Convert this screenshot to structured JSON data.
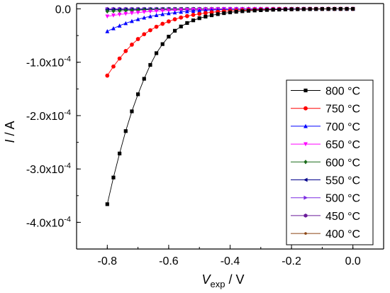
{
  "chart_data": {
    "type": "line",
    "title": "",
    "xlabel": {
      "main": "V",
      "sub": "exp",
      "unit": " / V"
    },
    "ylabel": {
      "main": "I",
      "unit": " / A"
    },
    "xlim": [
      -0.9,
      0.1
    ],
    "ylim": [
      -0.00045,
      1e-05
    ],
    "xticks": [
      -0.8,
      -0.6,
      -0.4,
      -0.2,
      0.0
    ],
    "xtick_labels": [
      "-0.8",
      "-0.6",
      "-0.4",
      "-0.2",
      "0.0"
    ],
    "yticks": [
      0.0,
      -0.0001,
      -0.0002,
      -0.0003,
      -0.0004
    ],
    "ytick_labels": [
      "0.0",
      "-1.0x10-4",
      "-2.0x10-4",
      "-3.0x10-4",
      "-4.0x10-4"
    ],
    "ytick_parts": [
      {
        "base": "0.0",
        "exp": ""
      },
      {
        "base": "-1.0x10",
        "exp": "-4"
      },
      {
        "base": "-2.0x10",
        "exp": "-4"
      },
      {
        "base": "-3.0x10",
        "exp": "-4"
      },
      {
        "base": "-4.0x10",
        "exp": "-4"
      }
    ],
    "grid": false,
    "legend_position": "right",
    "x": [
      -0.8,
      -0.78,
      -0.76,
      -0.74,
      -0.72,
      -0.7,
      -0.68,
      -0.66,
      -0.64,
      -0.62,
      -0.6,
      -0.58,
      -0.56,
      -0.54,
      -0.52,
      -0.5,
      -0.48,
      -0.46,
      -0.44,
      -0.42,
      -0.4,
      -0.38,
      -0.36,
      -0.34,
      -0.32,
      -0.3,
      -0.28,
      -0.26,
      -0.24,
      -0.22,
      -0.2,
      -0.18,
      -0.16,
      -0.14,
      -0.12,
      -0.1,
      -0.08,
      -0.06,
      -0.04,
      -0.02,
      0.0
    ],
    "series": [
      {
        "name": "800 °C",
        "color": "#000000",
        "marker": "square",
        "values": [
          -0.000366,
          -0.000316,
          -0.000271,
          -0.000229,
          -0.000192,
          -0.00016,
          -0.000131,
          -0.000105,
          -8.3e-05,
          -6.6e-05,
          -5.2e-05,
          -4.1e-05,
          -3.3e-05,
          -2.65e-05,
          -2.15e-05,
          -1.75e-05,
          -1.45e-05,
          -1.2e-05,
          -9.8e-06,
          -8e-06,
          -6.6e-06,
          -5.4e-06,
          -4.4e-06,
          -3.6e-06,
          -3e-06,
          -2.5e-06,
          -2e-06,
          -1.6e-06,
          -1.3e-06,
          -1e-06,
          -8e-07,
          -6e-07,
          -5e-07,
          -4e-07,
          -3e-07,
          -2e-07,
          -1.5e-07,
          -1e-07,
          -6e-08,
          -3e-08,
          0.0
        ]
      },
      {
        "name": "750 °C",
        "color": "#ff0000",
        "marker": "circle",
        "values": [
          -0.000125,
          -0.000108,
          -9.3e-05,
          -7.9e-05,
          -6.7e-05,
          -5.65e-05,
          -4.75e-05,
          -4e-05,
          -3.35e-05,
          -2.8e-05,
          -2.35e-05,
          -1.95e-05,
          -1.62e-05,
          -1.35e-05,
          -1.12e-05,
          -9.3e-06,
          -7.7e-06,
          -6.4e-06,
          -5.3e-06,
          -4.4e-06,
          -3.6e-06,
          -3e-06,
          -2.5e-06,
          -2e-06,
          -1.7e-06,
          -1.4e-06,
          -1.1e-06,
          -9e-07,
          -7e-07,
          -6e-07,
          -5e-07,
          -4e-07,
          -3e-07,
          -2e-07,
          -1.5e-07,
          -1e-07,
          -8e-08,
          -5e-08,
          -3e-08,
          -1e-08,
          0.0
        ]
      },
      {
        "name": "700 °C",
        "color": "#0000ff",
        "marker": "triangle-up",
        "values": [
          -4.2e-05,
          -3.65e-05,
          -3.15e-05,
          -2.7e-05,
          -2.3e-05,
          -1.95e-05,
          -1.65e-05,
          -1.4e-05,
          -1.18e-05,
          -9.9e-06,
          -8.3e-06,
          -6.9e-06,
          -5.7e-06,
          -4.7e-06,
          -3.9e-06,
          -3.2e-06,
          -2.6e-06,
          -2.1e-06,
          -1.7e-06,
          -1.4e-06,
          -1.1e-06,
          -9e-07,
          -7e-07,
          -6e-07,
          -5e-07,
          -4e-07,
          -3e-07,
          -2.5e-07,
          -2e-07,
          -1.5e-07,
          -1e-07,
          -8e-08,
          -6e-08,
          -4e-08,
          -3e-08,
          -2e-08,
          -1e-08,
          -1e-08,
          0.0,
          0.0,
          0.0
        ]
      },
      {
        "name": "650 °C",
        "color": "#ff00ff",
        "marker": "triangle-down",
        "values": [
          -1.4e-05,
          -1.22e-05,
          -1.06e-05,
          -9.2e-06,
          -7.9e-06,
          -6.8e-06,
          -5.8e-06,
          -4.9e-06,
          -4.2e-06,
          -3.5e-06,
          -3e-06,
          -2.5e-06,
          -2.1e-06,
          -1.7e-06,
          -1.4e-06,
          -1.2e-06,
          -1e-06,
          -8e-07,
          -6e-07,
          -5e-07,
          -4e-07,
          -3e-07,
          -2.5e-07,
          -2e-07,
          -1.5e-07,
          -1.2e-07,
          -1e-07,
          -8e-08,
          -6e-08,
          -5e-08,
          -4e-08,
          -3e-08,
          -2e-08,
          -2e-08,
          -1e-08,
          -1e-08,
          0.0,
          0.0,
          0.0,
          0.0,
          0.0
        ]
      },
      {
        "name": "600 °C",
        "color": "#1a6b1a",
        "marker": "diamond",
        "values": [
          -4.5e-06,
          -4e-06,
          -3.5e-06,
          -3e-06,
          -2.6e-06,
          -2.2e-06,
          -1.9e-06,
          -1.6e-06,
          -1.4e-06,
          -1.2e-06,
          -1e-06,
          -8e-07,
          -7e-07,
          -6e-07,
          -5e-07,
          -4e-07,
          -3e-07,
          -2.5e-07,
          -2e-07,
          -1.6e-07,
          -1.3e-07,
          -1e-07,
          -8e-08,
          -6e-08,
          -5e-08,
          -4e-08,
          -3e-08,
          -2e-08,
          -2e-08,
          -1e-08,
          -1e-08,
          0.0,
          0.0,
          0.0,
          0.0,
          0.0,
          0.0,
          0.0,
          0.0,
          0.0,
          0.0
        ]
      },
      {
        "name": "550 °C",
        "color": "#00008b",
        "marker": "triangle-left",
        "values": [
          -1.5e-06,
          -1.3e-06,
          -1.2e-06,
          -1e-06,
          -9e-07,
          -8e-07,
          -7e-07,
          -6e-07,
          -5e-07,
          -4e-07,
          -3.5e-07,
          -3e-07,
          -2.5e-07,
          -2e-07,
          -1.7e-07,
          -1.4e-07,
          -1.2e-07,
          -1e-07,
          -8e-08,
          -6e-08,
          -5e-08,
          -4e-08,
          -3e-08,
          -3e-08,
          -2e-08,
          -2e-08,
          -1e-08,
          -1e-08,
          -1e-08,
          0.0,
          0.0,
          0.0,
          0.0,
          0.0,
          0.0,
          0.0,
          0.0,
          0.0,
          0.0,
          0.0,
          0.0
        ]
      },
      {
        "name": "500 °C",
        "color": "#7b2be2",
        "marker": "triangle-right",
        "values": [
          -6e-07,
          -5.5e-07,
          -5e-07,
          -4.5e-07,
          -4e-07,
          -3.5e-07,
          -3e-07,
          -2.7e-07,
          -2.4e-07,
          -2.1e-07,
          -1.8e-07,
          -1.5e-07,
          -1.3e-07,
          -1.1e-07,
          -9e-08,
          -8e-08,
          -7e-08,
          -6e-08,
          -5e-08,
          -4e-08,
          -3e-08,
          -3e-08,
          -2e-08,
          -2e-08,
          -2e-08,
          -1e-08,
          -1e-08,
          -1e-08,
          -1e-08,
          0.0,
          0.0,
          0.0,
          0.0,
          0.0,
          0.0,
          0.0,
          0.0,
          0.0,
          0.0,
          0.0,
          0.0
        ]
      },
      {
        "name": "450 °C",
        "color": "#6a1b9a",
        "marker": "hexagon",
        "values": [
          -2.5e-07,
          -2.3e-07,
          -2.1e-07,
          -1.9e-07,
          -1.7e-07,
          -1.5e-07,
          -1.3e-07,
          -1.2e-07,
          -1e-07,
          -9e-08,
          -8e-08,
          -7e-08,
          -6e-08,
          -5e-08,
          -4e-08,
          -4e-08,
          -3e-08,
          -3e-08,
          -2e-08,
          -2e-08,
          -2e-08,
          -1e-08,
          -1e-08,
          -1e-08,
          -1e-08,
          -1e-08,
          0.0,
          0.0,
          0.0,
          0.0,
          0.0,
          0.0,
          0.0,
          0.0,
          0.0,
          0.0,
          0.0,
          0.0,
          0.0,
          0.0,
          0.0
        ]
      },
      {
        "name": "400 °C",
        "color": "#8b4513",
        "marker": "dot",
        "values": [
          -1e-07,
          -9e-08,
          -8e-08,
          -8e-08,
          -7e-08,
          -6e-08,
          -6e-08,
          -5e-08,
          -5e-08,
          -4e-08,
          -4e-08,
          -3e-08,
          -3e-08,
          -3e-08,
          -2e-08,
          -2e-08,
          -2e-08,
          -2e-08,
          -1e-08,
          -1e-08,
          -1e-08,
          -1e-08,
          -1e-08,
          -1e-08,
          0.0,
          0.0,
          0.0,
          0.0,
          0.0,
          0.0,
          0.0,
          0.0,
          0.0,
          0.0,
          0.0,
          0.0,
          0.0,
          0.0,
          0.0,
          0.0,
          0.0
        ]
      }
    ]
  }
}
